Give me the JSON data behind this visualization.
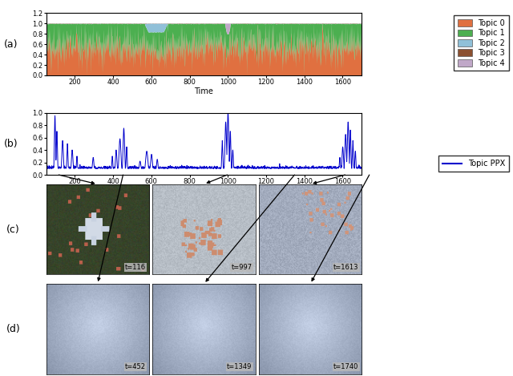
{
  "topic_colors": [
    "#E07040",
    "#4CAF50",
    "#90C0D8",
    "#8B5030",
    "#C0A8C8"
  ],
  "topic_labels": [
    "Topic 0",
    "Topic 1",
    "Topic 2",
    "Topic 3",
    "Topic 4"
  ],
  "ppx_color": "#0000CC",
  "ppx_label": "Topic PPX",
  "time_min": 50,
  "time_max": 1700,
  "xticks": [
    200,
    400,
    600,
    800,
    1000,
    1200,
    1400,
    1600
  ],
  "yticks_a": [
    0.0,
    0.2,
    0.4,
    0.6,
    0.8,
    1.0,
    1.2
  ],
  "yticks_b": [
    0.0,
    0.2,
    0.4,
    0.6,
    0.8,
    1.0
  ],
  "image_labels_c": [
    "t=116",
    "t=997",
    "t=1613"
  ],
  "image_labels_d": [
    "t=452",
    "t=1349",
    "t=1740"
  ],
  "arrow_times_c": [
    116,
    997,
    1613
  ],
  "arrow_times_d": [
    452,
    1349,
    1740
  ],
  "xlabel": "Time",
  "panel_labels": [
    "(a)",
    "(b)",
    "(c)",
    "(d)"
  ],
  "bg_color": "#FFFFFF"
}
